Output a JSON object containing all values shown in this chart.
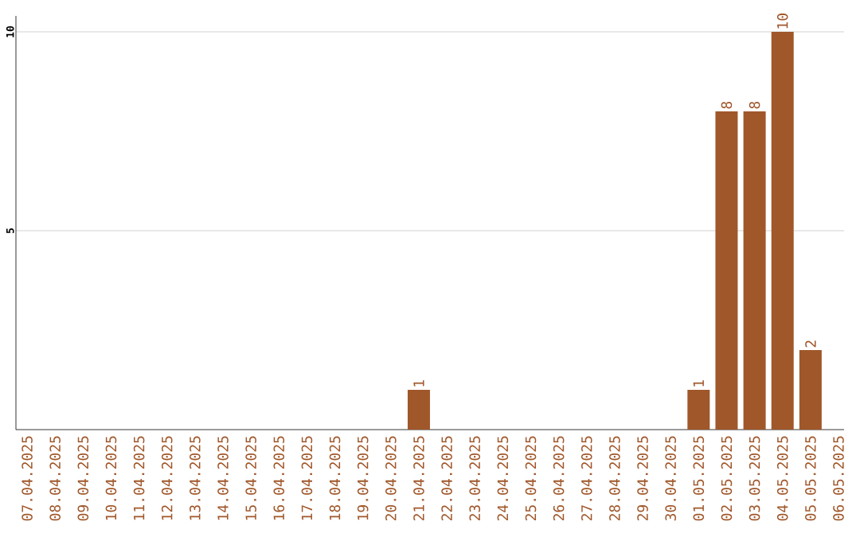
{
  "chart_data": {
    "type": "bar",
    "categories": [
      "07.04.2025",
      "08.04.2025",
      "09.04.2025",
      "10.04.2025",
      "11.04.2025",
      "12.04.2025",
      "13.04.2025",
      "14.04.2025",
      "15.04.2025",
      "16.04.2025",
      "17.04.2025",
      "18.04.2025",
      "19.04.2025",
      "20.04.2025",
      "21.04.2025",
      "22.04.2025",
      "23.04.2025",
      "24.04.2025",
      "25.04.2025",
      "26.04.2025",
      "27.04.2025",
      "28.04.2025",
      "29.04.2025",
      "30.04.2025",
      "01.05.2025",
      "02.05.2025",
      "03.05.2025",
      "04.05.2025",
      "05.05.2025",
      "06.05.2025"
    ],
    "values": [
      0,
      0,
      0,
      0,
      0,
      0,
      0,
      0,
      0,
      0,
      0,
      0,
      0,
      0,
      1,
      0,
      0,
      0,
      0,
      0,
      0,
      0,
      0,
      0,
      1,
      8,
      8,
      10,
      2,
      0
    ],
    "value_labels": [
      null,
      null,
      null,
      null,
      null,
      null,
      null,
      null,
      null,
      null,
      null,
      null,
      null,
      null,
      "1",
      null,
      null,
      null,
      null,
      null,
      null,
      null,
      null,
      null,
      "1",
      "8",
      "8",
      "10",
      "2",
      null
    ],
    "color": "#a0572a",
    "ylim": [
      0,
      10.4
    ],
    "yticks": [
      5,
      10
    ],
    "grid": "y"
  }
}
